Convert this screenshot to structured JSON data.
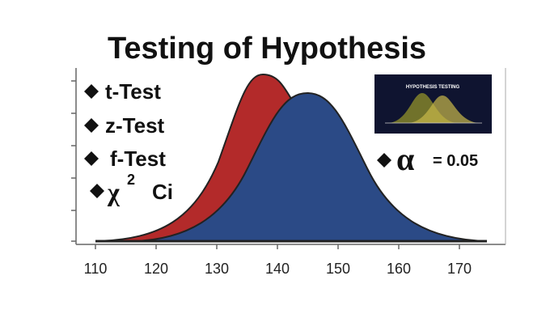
{
  "header": {
    "title": "Testing of Hypothesis"
  },
  "bullets": [
    "t-Test",
    "z-Test",
    "f-Test"
  ],
  "chi_bullet": {
    "symbol": "χ",
    "sup": "2",
    "text": "Ci"
  },
  "alpha": {
    "symbol": "α",
    "text": "= 0.05"
  },
  "inset": {
    "title": "HYPOTHESIS TESTING"
  },
  "axis": {
    "ticks": [
      110,
      120,
      130,
      140,
      150,
      160,
      170
    ]
  }
}
